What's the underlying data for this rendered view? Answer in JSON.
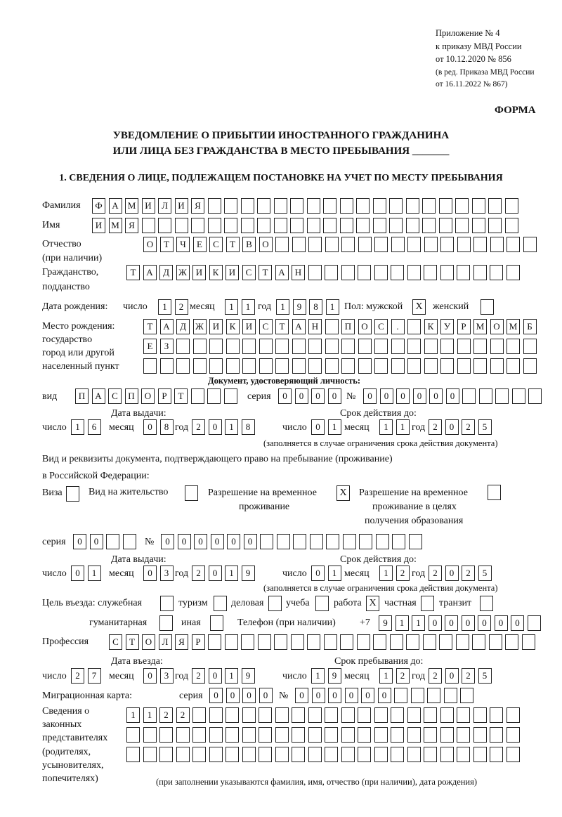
{
  "header": {
    "line1": "Приложение № 4",
    "line2": "к приказу МВД России",
    "line3": "от 10.12.2020 № 856",
    "line4": "(в ред. Приказа МВД России",
    "line5": "от 16.11.2022 № 867)",
    "form_label": "ФОРМА",
    "title1": "УВЕДОМЛЕНИЕ О ПРИБЫТИИ ИНОСТРАННОГО ГРАЖДАНИНА",
    "title2": "ИЛИ ЛИЦА БЕЗ ГРАЖДАНСТВА В МЕСТО ПРЕБЫВАНИЯ _______"
  },
  "section1": {
    "heading": "1. СВЕДЕНИЯ О ЛИЦЕ, ПОДЛЕЖАЩЕМ ПОСТАНОВКЕ НА УЧЕТ ПО МЕСТУ ПРЕБЫВАНИЯ",
    "surname": {
      "label": "Фамилия",
      "cells": [
        "Ф",
        "А",
        "М",
        "И",
        "Л",
        "И",
        "Я",
        "",
        "",
        "",
        "",
        "",
        "",
        "",
        "",
        "",
        "",
        "",
        "",
        "",
        "",
        "",
        "",
        "",
        "",
        ""
      ]
    },
    "name": {
      "label": "Имя",
      "cells": [
        "И",
        "М",
        "Я",
        "",
        "",
        "",
        "",
        "",
        "",
        "",
        "",
        "",
        "",
        "",
        "",
        "",
        "",
        "",
        "",
        "",
        "",
        "",
        "",
        "",
        "",
        ""
      ]
    },
    "patronymic": {
      "label1": "Отчество",
      "label2": "(при наличии)",
      "cells": [
        "О",
        "Т",
        "Ч",
        "Е",
        "С",
        "Т",
        "В",
        "О",
        "",
        "",
        "",
        "",
        "",
        "",
        "",
        "",
        "",
        "",
        "",
        "",
        "",
        "",
        "",
        ""
      ]
    },
    "citizenship": {
      "label1": "Гражданство,",
      "label2": "подданство",
      "cells": [
        "Т",
        "А",
        "Д",
        "Ж",
        "И",
        "К",
        "И",
        "С",
        "Т",
        "А",
        "Н",
        "",
        "",
        "",
        "",
        "",
        "",
        "",
        "",
        "",
        "",
        "",
        "",
        ""
      ]
    },
    "birth": {
      "label": "Дата рождения:",
      "day_label": "число",
      "day": [
        "1",
        "2"
      ],
      "month_label": "месяц",
      "month": [
        "1",
        "1"
      ],
      "year_label": "год",
      "year": [
        "1",
        "9",
        "8",
        "1"
      ],
      "sex_label": "Пол: мужской",
      "male": "X",
      "female_label": "женский",
      "female": ""
    },
    "birthplace": {
      "label1": "Место рождения:",
      "label2": "государство",
      "label3": "город или другой",
      "label4": "населенный пункт",
      "row1": [
        "Т",
        "А",
        "Д",
        "Ж",
        "И",
        "К",
        "И",
        "С",
        "Т",
        "А",
        "Н",
        "",
        "П",
        "О",
        "С",
        ".",
        "",
        "К",
        "У",
        "Р",
        "М",
        "О",
        "М",
        "Б"
      ],
      "row2": [
        "Е",
        "З",
        "",
        "",
        "",
        "",
        "",
        "",
        "",
        "",
        "",
        "",
        "",
        "",
        "",
        "",
        "",
        "",
        "",
        "",
        "",
        "",
        "",
        ""
      ],
      "row3": [
        "",
        "",
        "",
        "",
        "",
        "",
        "",
        "",
        "",
        "",
        "",
        "",
        "",
        "",
        "",
        "",
        "",
        "",
        "",
        "",
        "",
        "",
        "",
        ""
      ]
    },
    "id_doc": {
      "heading": "Документ, удостоверяющий личность:",
      "kind_label": "вид",
      "kind": [
        "П",
        "А",
        "С",
        "П",
        "О",
        "Р",
        "Т",
        "",
        "",
        ""
      ],
      "series_label": "серия",
      "series": [
        "0",
        "0",
        "0",
        "0"
      ],
      "number_label": "№",
      "number": [
        "0",
        "0",
        "0",
        "0",
        "0",
        "0",
        "",
        "",
        "",
        "",
        ""
      ],
      "issue_label": "Дата выдачи:",
      "valid_label": "Срок действия до:",
      "day_label": "число",
      "month_label": "месяц",
      "year_label": "год",
      "issue_day": [
        "1",
        "6"
      ],
      "issue_month": [
        "0",
        "8"
      ],
      "issue_year": [
        "2",
        "0",
        "1",
        "8"
      ],
      "valid_day": [
        "0",
        "1"
      ],
      "valid_month": [
        "1",
        "1"
      ],
      "valid_year": [
        "2",
        "0",
        "2",
        "5"
      ],
      "note": "(заполняется в случае ограничения срока действия документа)"
    },
    "stay_doc": {
      "intro1": "Вид и реквизиты документа, подтверждающего право на пребывание (проживание)",
      "intro2": "в Российской Федерации:",
      "visa_label": "Виза",
      "visa": "",
      "residence_label": "Вид на жительство",
      "residence": "",
      "trp_label1": "Разрешение на временное",
      "trp_label2": "проживание",
      "trp": "X",
      "trp_edu_label1": "Разрешение на временное",
      "trp_edu_label2": "проживание в целях",
      "trp_edu_label3": "получения образования",
      "trp_edu": "",
      "series_label": "серия",
      "series": [
        "0",
        "0",
        "",
        ""
      ],
      "number_label": "№",
      "number": [
        "0",
        "0",
        "0",
        "0",
        "0",
        "0",
        "",
        "",
        "",
        "",
        "",
        "",
        "",
        "",
        "",
        ""
      ],
      "issue_label": "Дата выдачи:",
      "valid_label": "Срок действия до:",
      "day_label": "число",
      "month_label": "месяц",
      "year_label": "год",
      "issue_day": [
        "0",
        "1"
      ],
      "issue_month": [
        "0",
        "3"
      ],
      "issue_year": [
        "2",
        "0",
        "1",
        "9"
      ],
      "valid_day": [
        "0",
        "1"
      ],
      "valid_month": [
        "1",
        "2"
      ],
      "valid_year": [
        "2",
        "0",
        "2",
        "5"
      ],
      "note": "(заполняется в случае ограничения срока действия документа)"
    },
    "purpose": {
      "label": "Цель въезда: служебная",
      "official": "",
      "tourism_label": "туризм",
      "tourism": "",
      "business_label": "деловая",
      "business": "",
      "study_label": "учеба",
      "study": "",
      "work_label": "работа",
      "work": "X",
      "private_label": "частная",
      "private": "",
      "transit_label": "транзит",
      "transit": "",
      "humanitarian_label": "гуманитарная",
      "humanitarian": "",
      "other_label": "иная",
      "other": ""
    },
    "phone": {
      "label": "Телефон (при наличии)",
      "prefix": "+7",
      "cells": [
        "9",
        "1",
        "1",
        "0",
        "0",
        "0",
        "0",
        "0",
        "0",
        ""
      ]
    },
    "profession": {
      "label": "Профессия",
      "cells": [
        "С",
        "Т",
        "О",
        "Л",
        "Я",
        "Р",
        "",
        "",
        "",
        "",
        "",
        "",
        "",
        "",
        "",
        "",
        "",
        "",
        "",
        "",
        "",
        "",
        "",
        "",
        "",
        ""
      ]
    },
    "entry": {
      "entry_label": "Дата въезда:",
      "stay_until_label": "Срок пребывания до:",
      "day_label": "число",
      "month_label": "месяц",
      "year_label": "год",
      "entry_day": [
        "2",
        "7"
      ],
      "entry_month": [
        "0",
        "3"
      ],
      "entry_year": [
        "2",
        "0",
        "1",
        "9"
      ],
      "until_day": [
        "1",
        "9"
      ],
      "until_month": [
        "1",
        "2"
      ],
      "until_year": [
        "2",
        "0",
        "2",
        "5"
      ]
    },
    "migration_card": {
      "label": "Миграционная карта:",
      "series_label": "серия",
      "series": [
        "0",
        "0",
        "0",
        "0"
      ],
      "number_label": "№",
      "number": [
        "0",
        "0",
        "0",
        "0",
        "0",
        "0",
        "",
        "",
        "",
        "",
        ""
      ]
    },
    "representatives": {
      "label1": "Сведения о",
      "label2": "законных",
      "label3": "представителях",
      "label4": "(родителях,",
      "label5": "усыновителях,",
      "label6": "попечителях)",
      "row1": [
        "1",
        "1",
        "2",
        "2",
        "",
        "",
        "",
        "",
        "",
        "",
        "",
        "",
        "",
        "",
        "",
        "",
        "",
        "",
        "",
        "",
        "",
        "",
        "",
        ""
      ],
      "row2": [
        "",
        "",
        "",
        "",
        "",
        "",
        "",
        "",
        "",
        "",
        "",
        "",
        "",
        "",
        "",
        "",
        "",
        "",
        "",
        "",
        "",
        "",
        "",
        ""
      ],
      "row3": [
        "",
        "",
        "",
        "",
        "",
        "",
        "",
        "",
        "",
        "",
        "",
        "",
        "",
        "",
        "",
        "",
        "",
        "",
        "",
        "",
        "",
        "",
        "",
        ""
      ],
      "note": "(при заполнении указываются фамилия, имя, отчество (при наличии), дата рождения)"
    }
  }
}
